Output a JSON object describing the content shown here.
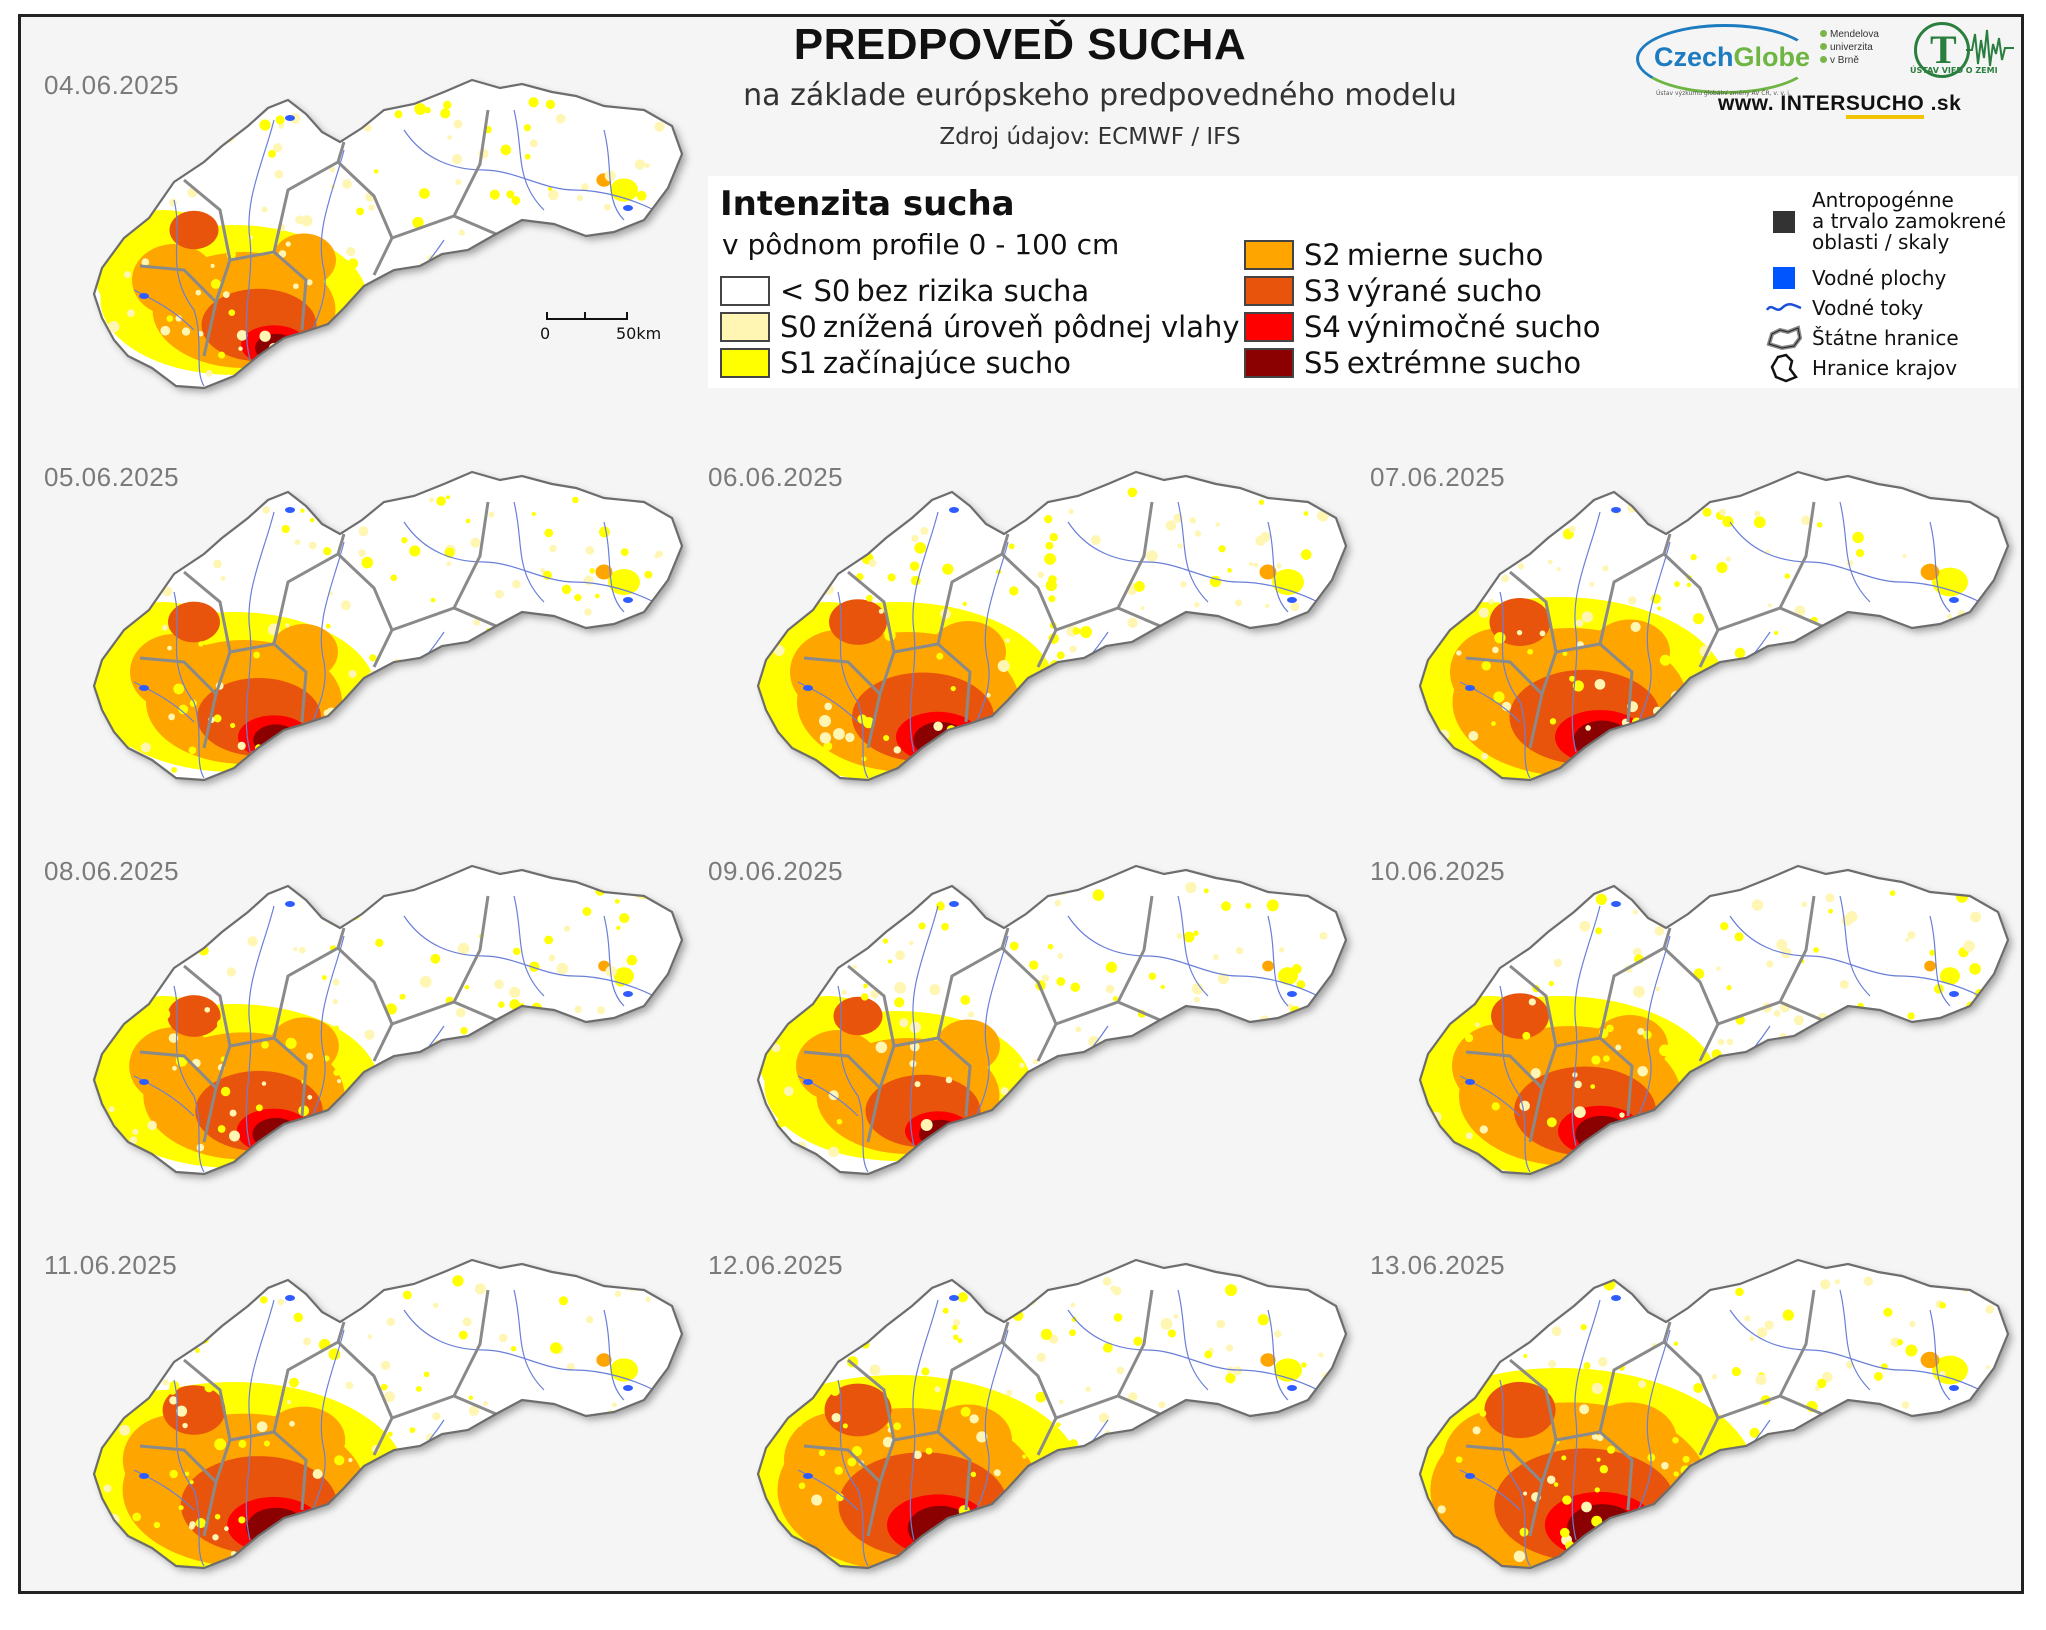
{
  "header": {
    "title": "PREDPOVEĎ SUCHA",
    "subtitle": "na základe európskeho predpovedného modelu",
    "source": "Zdroj údajov: ECMWF / IFS",
    "website_prefix": "www. INTER",
    "website_highlight": "SUCHO",
    "website_suffix": " .sk"
  },
  "logos": {
    "czechglobe_a": "Czech",
    "czechglobe_b": "Globe",
    "czechglobe_small": "Ústav výzkumu globální změny AV ČR, v. v. i.",
    "mendel_1": "Mendelova",
    "mendel_2": "univerzita",
    "mendel_3": "v Brně",
    "uvz": "ÚSTAV VIED O ZEMI"
  },
  "legend": {
    "title": "Intenzita sucha",
    "subtitle": "v pôdnom profile 0 - 100 cm",
    "classes": [
      {
        "code": "< S0",
        "label": "bez rizika sucha",
        "color": "#ffffff"
      },
      {
        "code": "S0",
        "label": "znížená úroveň pôdnej vlahy",
        "color": "#fff6b4"
      },
      {
        "code": "S1",
        "label": "začínajúce sucho",
        "color": "#ffff00"
      },
      {
        "code": "S2",
        "label": "mierne sucho",
        "color": "#ffa500"
      },
      {
        "code": "S3",
        "label": "výrané sucho",
        "color": "#e8540c"
      },
      {
        "code": "S4",
        "label": "výnimočné sucho",
        "color": "#ff0000"
      },
      {
        "code": "S5",
        "label": "extrémne sucho",
        "color": "#8b0000"
      }
    ],
    "other": [
      {
        "label": "Antropogénne\na trvalo zamokrené\noblasti / skaly",
        "icon": "dark-square-icon",
        "color": "#333333"
      },
      {
        "label": "Vodné plochy",
        "icon": "blue-square-icon",
        "color": "#0055ff"
      },
      {
        "label": "Vodné toky",
        "icon": "river-line-icon",
        "color": "#1a4fd6"
      },
      {
        "label": "Štátne hranice",
        "icon": "state-border-icon",
        "color": "#777777"
      },
      {
        "label": "Hranice krajov",
        "icon": "region-border-icon",
        "color": "#111111"
      }
    ]
  },
  "scalebar": {
    "label_start": "0",
    "label_end": "50km"
  },
  "maps": [
    {
      "date": "04.06.2025",
      "intensity": 0.55,
      "northeast": 0.2
    },
    {
      "date": "05.06.2025",
      "intensity": 0.6,
      "northeast": 0.25
    },
    {
      "date": "06.06.2025",
      "intensity": 0.7,
      "northeast": 0.25
    },
    {
      "date": "07.06.2025",
      "intensity": 0.75,
      "northeast": 0.3
    },
    {
      "date": "08.06.2025",
      "intensity": 0.62,
      "northeast": 0.1
    },
    {
      "date": "09.06.2025",
      "intensity": 0.55,
      "northeast": 0.1
    },
    {
      "date": "10.06.2025",
      "intensity": 0.7,
      "northeast": 0.1
    },
    {
      "date": "11.06.2025",
      "intensity": 0.78,
      "northeast": 0.2
    },
    {
      "date": "12.06.2025",
      "intensity": 0.85,
      "northeast": 0.2
    },
    {
      "date": "13.06.2025",
      "intensity": 0.92,
      "northeast": 0.3
    }
  ]
}
